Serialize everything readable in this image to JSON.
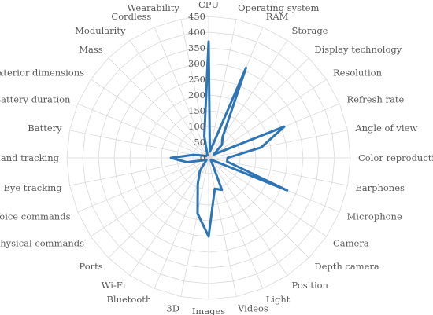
{
  "chart_data": {
    "type": "radar",
    "title": "",
    "categories": [
      "CPU",
      "Operating system",
      "RAM",
      "Storage",
      "Display technology",
      "Resolution",
      "Refresh rate",
      "Angle of view",
      "Color reproduction",
      "Earphones",
      "Microphone",
      "Camera",
      "Depth camera",
      "Position",
      "Light",
      "Videos",
      "Images",
      "3D",
      "Bluetooth",
      "Wi-Fi",
      "Ports",
      "Physical commands",
      "Voice commands",
      "Eye tracking",
      "Hand tracking",
      "Battery",
      "Battery duration",
      "Exterior dimensions",
      "Mass",
      "Modularity",
      "Cordless",
      "Wearability"
    ],
    "series": [
      {
        "values": [
          370,
          20,
          310,
          80,
          60,
          20,
          260,
          170,
          60,
          60,
          270,
          10,
          10,
          20,
          110,
          100,
          250,
          180,
          90,
          50,
          10,
          10,
          20,
          70,
          120,
          50,
          20,
          10,
          10,
          10,
          10,
          70
        ],
        "color": "#2e75b6"
      }
    ],
    "ticks": [
      0,
      50,
      100,
      150,
      200,
      250,
      300,
      350,
      400,
      450
    ],
    "rmax": 450,
    "grid": true,
    "legend": "none"
  }
}
